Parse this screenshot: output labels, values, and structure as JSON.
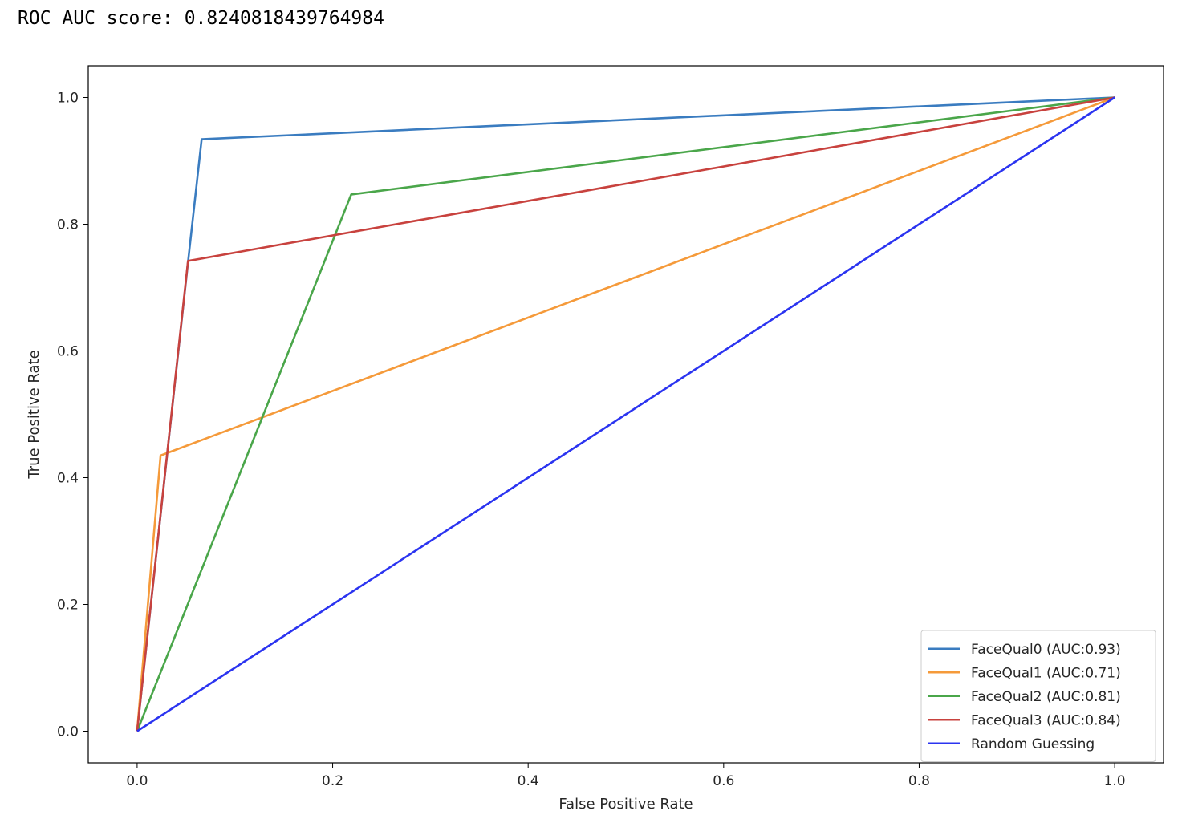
{
  "output": {
    "text": "ROC AUC score: 0.8240818439764984"
  },
  "chart_data": {
    "type": "line",
    "title": "",
    "xlabel": "False Positive Rate",
    "ylabel": "True Positive Rate",
    "xlim": [
      -0.05,
      1.05
    ],
    "ylim": [
      -0.05,
      1.05
    ],
    "xticks": [
      0.0,
      0.2,
      0.4,
      0.6,
      0.8,
      1.0
    ],
    "yticks": [
      0.0,
      0.2,
      0.4,
      0.6,
      0.8,
      1.0
    ],
    "xtick_labels": [
      "0.0",
      "0.2",
      "0.4",
      "0.6",
      "0.8",
      "1.0"
    ],
    "ytick_labels": [
      "0.0",
      "0.2",
      "0.4",
      "0.6",
      "0.8",
      "1.0"
    ],
    "grid": false,
    "legend_position": "lower right",
    "series": [
      {
        "name": "FaceQual0 (AUC:0.93)",
        "color": "#3a7cc0",
        "x": [
          0.0,
          0.052,
          0.066,
          1.0
        ],
        "y": [
          0.0,
          0.74,
          0.934,
          1.0
        ]
      },
      {
        "name": "FaceQual1 (AUC:0.71)",
        "color": "#f59a3a",
        "x": [
          0.0,
          0.024,
          1.0
        ],
        "y": [
          0.0,
          0.435,
          1.0
        ]
      },
      {
        "name": "FaceQual2 (AUC:0.81)",
        "color": "#4aa64a",
        "x": [
          0.0,
          0.219,
          1.0
        ],
        "y": [
          0.0,
          0.847,
          1.0
        ]
      },
      {
        "name": "FaceQual3 (AUC:0.84)",
        "color": "#c8423e",
        "x": [
          0.0,
          0.052,
          1.0
        ],
        "y": [
          0.0,
          0.742,
          1.0
        ]
      },
      {
        "name": "Random Guessing",
        "color": "#2b34f0",
        "x": [
          0.0,
          1.0
        ],
        "y": [
          0.0,
          1.0
        ]
      }
    ]
  }
}
